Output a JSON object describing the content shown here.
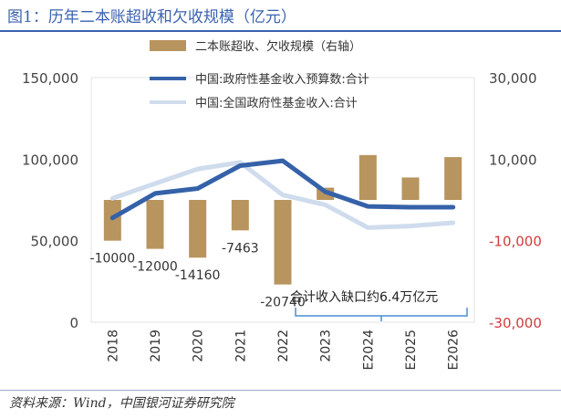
{
  "header": {
    "title": "图1：历年二本账超收和欠收规模（亿元）"
  },
  "footer": {
    "source": "资料来源：Wind，中国银河证券研究院"
  },
  "colors": {
    "bar": "#b8945e",
    "line_budget": "#3561a8",
    "line_actual": "#cfdced",
    "right_axis_negative": "#d03c3c",
    "bracket": "#4a8ed0"
  },
  "chart_data": {
    "type": "bar+line",
    "title": "历年二本账超收和欠收规模（亿元）",
    "categories": [
      "2018",
      "2019",
      "2020",
      "2021",
      "2022",
      "2023",
      "E2024",
      "E2025",
      "E2026"
    ],
    "left_axis": {
      "min": 0,
      "max": 150000,
      "ticks": [
        0,
        50000,
        100000,
        150000
      ],
      "tick_labels": [
        "0",
        "50,000",
        "100,000",
        "150,000"
      ]
    },
    "right_axis": {
      "min": -30000,
      "max": 30000,
      "ticks": [
        -30000,
        -10000,
        10000,
        30000
      ],
      "tick_labels": [
        "-30,000",
        "-10,000",
        "10,000",
        "30,000"
      ]
    },
    "series": [
      {
        "name": "二本账超收、欠收规模（右轴）",
        "type": "bar",
        "axis": "right",
        "values": [
          -10000,
          -12000,
          -14160,
          -7463,
          -20740,
          3000,
          11000,
          5500,
          10500
        ],
        "data_labels": [
          "-10000",
          "-12000",
          "-14160",
          "-7463",
          "-20740",
          "",
          "",
          "",
          ""
        ]
      },
      {
        "name": "中国:政府性基金收入预算数:合计",
        "type": "line",
        "axis": "left",
        "values": [
          64000,
          79000,
          82000,
          96000,
          99000,
          80000,
          71000,
          70500,
          70500
        ]
      },
      {
        "name": "中国:全国政府性基金收入:合计",
        "type": "line",
        "axis": "left",
        "values": [
          76000,
          85000,
          94000,
          98000,
          78000,
          72000,
          58000,
          59000,
          61000
        ]
      }
    ],
    "annotation": "合计收入缺口约6.4万亿元",
    "legend_position": "top-center"
  }
}
